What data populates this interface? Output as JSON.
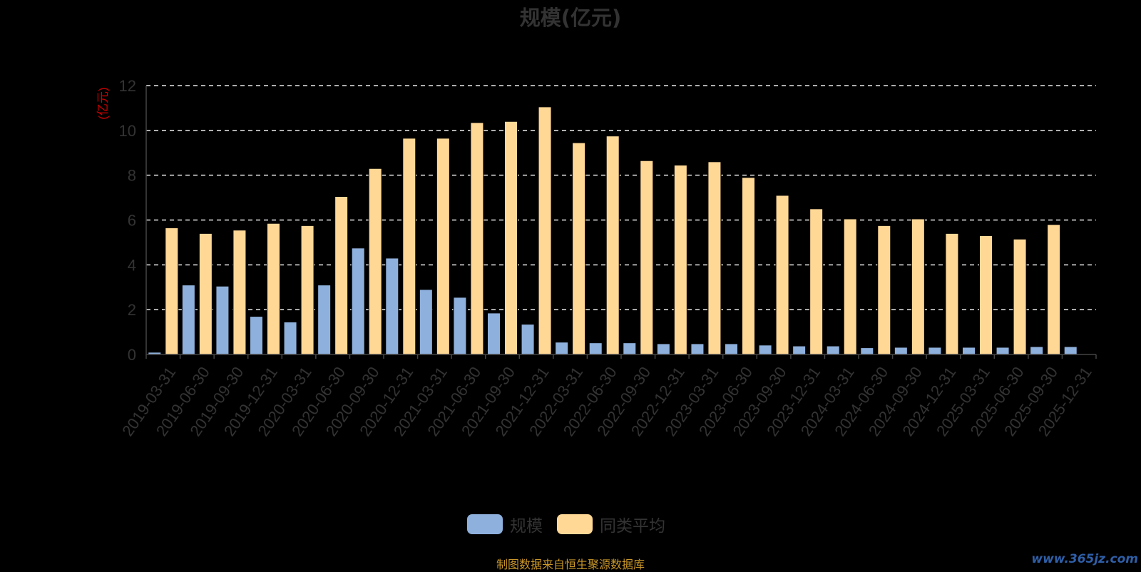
{
  "chart_data": {
    "type": "bar",
    "title": "规模(亿元)",
    "ylabel": "(亿元)",
    "ylim": [
      0,
      12
    ],
    "yticks": [
      0,
      2,
      4,
      6,
      8,
      10,
      12
    ],
    "grid": true,
    "legend_position": "bottom",
    "categories": [
      "2019-03-31",
      "2019-06-30",
      "2019-09-30",
      "2019-12-31",
      "2020-03-31",
      "2020-06-30",
      "2020-09-30",
      "2020-12-31",
      "2021-03-31",
      "2021-06-30",
      "2021-09-30",
      "2021-12-31",
      "2022-03-31",
      "2022-06-30",
      "2022-09-30",
      "2022-12-31",
      "2023-03-31",
      "2023-06-30",
      "2023-09-30",
      "2023-12-31",
      "2024-03-31",
      "2024-06-30",
      "2024-09-30",
      "2024-12-31",
      "2025-03-31",
      "2025-06-30",
      "2025-09-30",
      "2025-12-31"
    ],
    "series": [
      {
        "name": "规模",
        "color": "#8eb0dc",
        "values": [
          0.1,
          3.1,
          3.05,
          1.7,
          1.45,
          3.1,
          4.75,
          4.3,
          2.9,
          2.55,
          1.85,
          1.35,
          0.55,
          0.52,
          0.52,
          0.48,
          0.48,
          0.48,
          0.42,
          0.38,
          0.38,
          0.3,
          0.32,
          0.32,
          0.32,
          0.32,
          0.35,
          0.35
        ]
      },
      {
        "name": "同类平均",
        "color": "#ffd896",
        "values": [
          5.65,
          5.4,
          5.55,
          5.85,
          5.75,
          7.05,
          8.3,
          9.65,
          9.65,
          10.35,
          10.4,
          11.05,
          9.45,
          9.75,
          8.65,
          8.45,
          8.6,
          7.9,
          7.1,
          6.5,
          6.05,
          5.75,
          6.05,
          5.4,
          5.3,
          5.15,
          5.8,
          null
        ]
      }
    ]
  },
  "footer": {
    "source": "制图数据来自恒生聚源数据库",
    "watermark": "www.365jz.com"
  }
}
